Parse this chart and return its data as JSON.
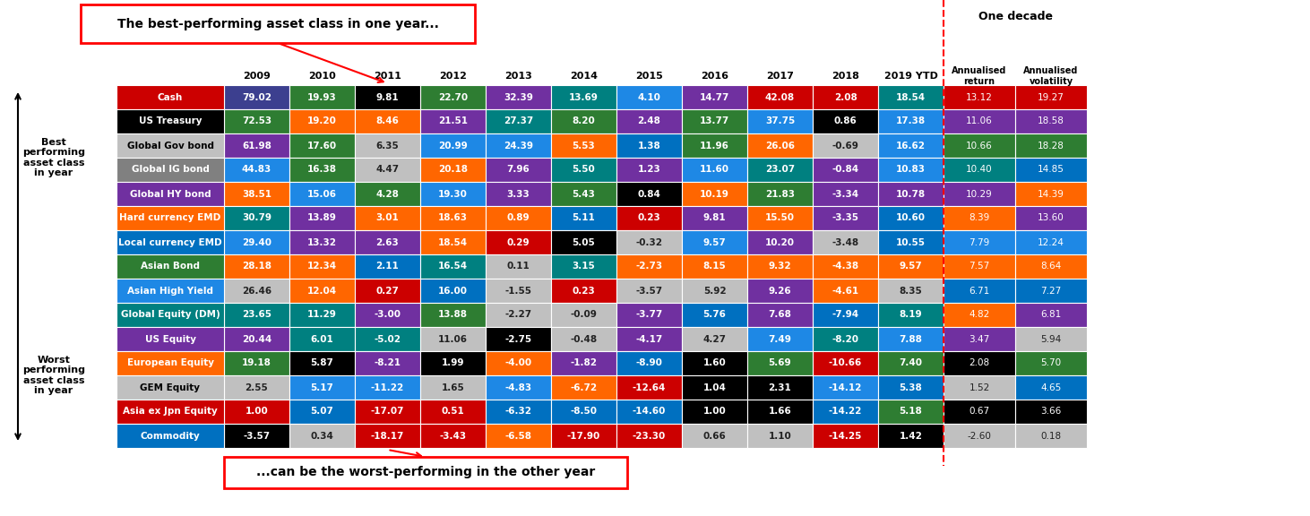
{
  "row_labels": [
    "Cash",
    "US Treasury",
    "Global Gov bond",
    "Global IG bond",
    "Global HY bond",
    "Hard currency EMD",
    "Local currency EMD",
    "Asian Bond",
    "Asian High Yield",
    "Global Equity (DM)",
    "US Equity",
    "European Equity",
    "GEM Equity",
    "Asia ex Jpn Equity",
    "Commodity"
  ],
  "row_label_colors": [
    "#cc0000",
    "#000000",
    "#c0c0c0",
    "#808080",
    "#7030a0",
    "#ff6600",
    "#0070c0",
    "#2e7d32",
    "#1e88e5",
    "#008080",
    "#7030a0",
    "#ff6600",
    "#c0c0c0",
    "#cc0000",
    "#0070c0"
  ],
  "row_label_text_colors": [
    "#ffffff",
    "#ffffff",
    "#000000",
    "#ffffff",
    "#ffffff",
    "#ffffff",
    "#ffffff",
    "#ffffff",
    "#ffffff",
    "#ffffff",
    "#ffffff",
    "#ffffff",
    "#000000",
    "#ffffff",
    "#ffffff"
  ],
  "col_years": [
    "2009",
    "2010",
    "2011",
    "2012",
    "2013",
    "2014",
    "2015",
    "2016",
    "2017",
    "2018",
    "2019 YTD"
  ],
  "col_extra": [
    "Annualised\nreturn",
    "Annualised\nvolatility"
  ],
  "values": [
    [
      79.02,
      19.93,
      9.81,
      22.7,
      32.39,
      13.69,
      4.1,
      14.77,
      42.08,
      2.08,
      18.54,
      13.12,
      19.27
    ],
    [
      72.53,
      19.2,
      8.46,
      21.51,
      27.37,
      8.2,
      2.48,
      13.77,
      37.75,
      0.86,
      17.38,
      11.06,
      18.58
    ],
    [
      61.98,
      17.6,
      6.35,
      20.99,
      24.39,
      5.53,
      1.38,
      11.96,
      26.06,
      -0.69,
      16.62,
      10.66,
      18.28
    ],
    [
      44.83,
      16.38,
      4.47,
      20.18,
      7.96,
      5.5,
      1.23,
      11.6,
      23.07,
      -0.84,
      10.83,
      10.4,
      14.85
    ],
    [
      38.51,
      15.06,
      4.28,
      19.3,
      3.33,
      5.43,
      0.84,
      10.19,
      21.83,
      -3.34,
      10.78,
      10.29,
      14.39
    ],
    [
      30.79,
      13.89,
      3.01,
      18.63,
      0.89,
      5.11,
      0.23,
      9.81,
      15.5,
      -3.35,
      10.6,
      8.39,
      13.6
    ],
    [
      29.4,
      13.32,
      2.63,
      18.54,
      0.29,
      5.05,
      -0.32,
      9.57,
      10.2,
      -3.48,
      10.55,
      7.79,
      12.24
    ],
    [
      28.18,
      12.34,
      2.11,
      16.54,
      0.11,
      3.15,
      -2.73,
      8.15,
      9.32,
      -4.38,
      9.57,
      7.57,
      8.64
    ],
    [
      26.46,
      12.04,
      0.27,
      16.0,
      -1.55,
      0.23,
      -3.57,
      5.92,
      9.26,
      -4.61,
      8.35,
      6.71,
      7.27
    ],
    [
      23.65,
      11.29,
      -3.0,
      13.88,
      -2.27,
      -0.09,
      -3.77,
      5.76,
      7.68,
      -7.94,
      8.19,
      4.82,
      6.81
    ],
    [
      20.44,
      6.01,
      -5.02,
      11.06,
      -2.75,
      -0.48,
      -4.17,
      4.27,
      7.49,
      -8.2,
      7.88,
      3.47,
      5.94
    ],
    [
      19.18,
      5.87,
      -8.21,
      1.99,
      -4.0,
      -1.82,
      -8.9,
      1.6,
      5.69,
      -10.66,
      7.4,
      2.08,
      5.7
    ],
    [
      2.55,
      5.17,
      -11.22,
      1.65,
      -4.83,
      -6.72,
      -12.64,
      1.04,
      2.31,
      -14.12,
      5.38,
      1.52,
      4.65
    ],
    [
      1.0,
      5.07,
      -17.07,
      0.51,
      -6.32,
      -8.5,
      -14.6,
      1.0,
      1.66,
      -14.22,
      5.18,
      0.67,
      3.66
    ],
    [
      -3.57,
      0.34,
      -18.17,
      -3.43,
      -6.58,
      -17.9,
      -23.3,
      0.66,
      1.1,
      -14.25,
      1.42,
      -2.6,
      0.18
    ]
  ],
  "cell_colors": [
    [
      "#3c3f8f",
      "#2e7d32",
      "#000000",
      "#2e7d32",
      "#7030a0",
      "#008080",
      "#1e88e5",
      "#7030a0",
      "#cc0000",
      "#cc0000",
      "#008080",
      "#cc0000",
      "#cc0000"
    ],
    [
      "#2e7d32",
      "#ff6600",
      "#ff6600",
      "#7030a0",
      "#008080",
      "#2e7d32",
      "#7030a0",
      "#2e7d32",
      "#1e88e5",
      "#000000",
      "#1e88e5",
      "#7030a0",
      "#7030a0"
    ],
    [
      "#7030a0",
      "#2e7d32",
      "#c0c0c0",
      "#1e88e5",
      "#1e88e5",
      "#ff6600",
      "#0070c0",
      "#2e7d32",
      "#ff6600",
      "#c0c0c0",
      "#1e88e5",
      "#2e7d32",
      "#ff6600"
    ],
    [
      "#1e88e5",
      "#2e7d32",
      "#c0c0c0",
      "#ff6600",
      "#7030a0",
      "#008080",
      "#7030a0",
      "#1e88e5",
      "#008080",
      "#7030a0",
      "#1e88e5",
      "#008080",
      "#1e88e5"
    ],
    [
      "#ff6600",
      "#1e88e5",
      "#2e7d32",
      "#1e88e5",
      "#7030a0",
      "#2e7d32",
      "#000000",
      "#ff6600",
      "#2e7d32",
      "#7030a0",
      "#7030a0",
      "#7030a0",
      "#ff6600"
    ],
    [
      "#008080",
      "#7030a0",
      "#ff6600",
      "#ff6600",
      "#ff6600",
      "#0070c0",
      "#cc0000",
      "#7030a0",
      "#ff6600",
      "#7030a0",
      "#0070c0",
      "#ff6600",
      "#7030a0"
    ],
    [
      "#1e88e5",
      "#7030a0",
      "#7030a0",
      "#ff6600",
      "#cc0000",
      "#000000",
      "#c0c0c0",
      "#1e88e5",
      "#7030a0",
      "#c0c0c0",
      "#0070c0",
      "#0070c0",
      "#1e88e5"
    ],
    [
      "#ff6600",
      "#ff6600",
      "#0070c0",
      "#008080",
      "#c0c0c0",
      "#008080",
      "#ff6600",
      "#ff6600",
      "#ff6600",
      "#ff6600",
      "#ff6600",
      "#ff6600",
      "#ff6600"
    ],
    [
      "#c0c0c0",
      "#ff6600",
      "#cc0000",
      "#0070c0",
      "#c0c0c0",
      "#cc0000",
      "#c0c0c0",
      "#c0c0c0",
      "#7030a0",
      "#ff6600",
      "#c0c0c0",
      "#0070c0",
      "#0070c0"
    ],
    [
      "#008080",
      "#008080",
      "#7030a0",
      "#2e7d32",
      "#c0c0c0",
      "#c0c0c0",
      "#7030a0",
      "#0070c0",
      "#7030a0",
      "#0070c0",
      "#008080",
      "#ff6600",
      "#7030a0"
    ],
    [
      "#7030a0",
      "#008080",
      "#008080",
      "#c0c0c0",
      "#000000",
      "#c0c0c0",
      "#7030a0",
      "#c0c0c0",
      "#1e88e5",
      "#008080",
      "#1e88e5",
      "#7030a0",
      "#c0c0c0"
    ],
    [
      "#2e7d32",
      "#000000",
      "#7030a0",
      "#000000",
      "#ff6600",
      "#7030a0",
      "#0070c0",
      "#000000",
      "#2e7d32",
      "#cc0000",
      "#2e7d32",
      "#000000",
      "#2e7d32"
    ],
    [
      "#c0c0c0",
      "#1e88e5",
      "#1e88e5",
      "#c0c0c0",
      "#1e88e5",
      "#ff6600",
      "#cc0000",
      "#000000",
      "#000000",
      "#1e88e5",
      "#0070c0",
      "#c0c0c0",
      "#0070c0"
    ],
    [
      "#cc0000",
      "#0070c0",
      "#cc0000",
      "#cc0000",
      "#0070c0",
      "#0070c0",
      "#0070c0",
      "#000000",
      "#000000",
      "#0070c0",
      "#2e7d32",
      "#000000",
      "#000000"
    ],
    [
      "#000000",
      "#c0c0c0",
      "#cc0000",
      "#cc0000",
      "#ff6600",
      "#cc0000",
      "#cc0000",
      "#c0c0c0",
      "#c0c0c0",
      "#cc0000",
      "#000000",
      "#c0c0c0",
      "#c0c0c0"
    ]
  ],
  "annualised_return_colors": [
    "#cc0000",
    "#7030a0",
    "#2e7d32",
    "#008080",
    "#7030a0",
    "#ff6600",
    "#1e88e5",
    "#ff6600",
    "#0070c0",
    "#ff6600",
    "#7030a0",
    "#000000",
    "#c0c0c0",
    "#000000",
    "#c0c0c0"
  ],
  "annualised_vol_colors": [
    "#cc0000",
    "#7030a0",
    "#2e7d32",
    "#0070c0",
    "#ff6600",
    "#7030a0",
    "#1e88e5",
    "#ff6600",
    "#0070c0",
    "#7030a0",
    "#c0c0c0",
    "#2e7d32",
    "#0070c0",
    "#000000",
    "#c0c0c0"
  ],
  "title_box": "The best-performing asset class in one year...",
  "bottom_box": "...can be the worst-performing in the other year",
  "one_decade_label": "One decade",
  "best_label": "Best\nperforming\nasset class\nin year",
  "worst_label": "Worst\nperforming\nasset class\nin year"
}
